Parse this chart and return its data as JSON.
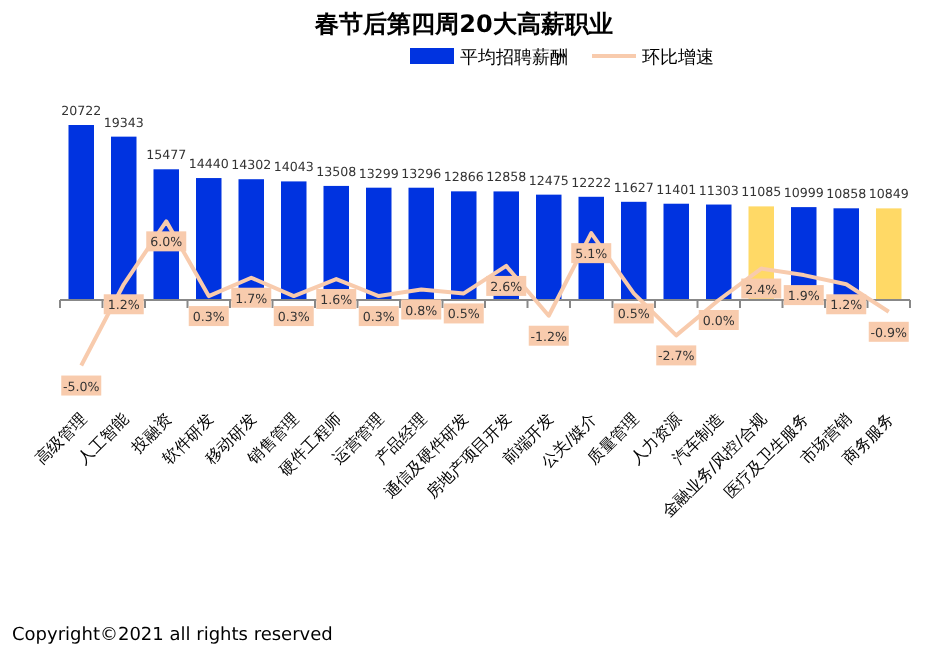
{
  "chart_data": {
    "type": "bar",
    "title": "春节后第四周20大高薪职业",
    "categories": [
      "高级管理",
      "人工智能",
      "投融资",
      "软件研发",
      "移动研发",
      "销售管理",
      "硬件工程师",
      "运营管理",
      "产品经理",
      "通信及硬件研发",
      "房地产项目开发",
      "前端开发",
      "公关/媒介",
      "质量管理",
      "人力资源",
      "汽车制造",
      "金融业务/风控/合规",
      "医疗及卫生服务",
      "市场营销",
      "商务服务"
    ],
    "series": [
      {
        "name": "平均招聘薪酬",
        "color": "#0033e0",
        "colors": [
          "#0033e0",
          "#0033e0",
          "#0033e0",
          "#0033e0",
          "#0033e0",
          "#0033e0",
          "#0033e0",
          "#0033e0",
          "#0033e0",
          "#0033e0",
          "#0033e0",
          "#0033e0",
          "#0033e0",
          "#0033e0",
          "#0033e0",
          "#0033e0",
          "#ffd966",
          "#0033e0",
          "#0033e0",
          "#ffd966"
        ],
        "values": [
          20722,
          19343,
          15477,
          14440,
          14302,
          14043,
          13508,
          13299,
          13296,
          12866,
          12858,
          12475,
          12222,
          11627,
          11401,
          11303,
          11085,
          10999,
          10858,
          10849
        ]
      },
      {
        "name": "环比增速",
        "type": "line",
        "axis": "y2",
        "color": "#f8cbad",
        "values": [
          -5.0,
          1.2,
          6.0,
          0.3,
          1.7,
          0.3,
          1.6,
          0.3,
          0.8,
          0.5,
          2.6,
          -1.2,
          5.1,
          0.5,
          -2.7,
          0.0,
          2.4,
          1.9,
          1.2,
          -0.9
        ],
        "value_labels": [
          "-5.0%",
          "1.2%",
          "6.0%",
          "0.3%",
          "1.7%",
          "0.3%",
          "1.6%",
          "0.3%",
          "0.8%",
          "0.5%",
          "2.6%",
          "-1.2%",
          "5.1%",
          "0.5%",
          "-2.7%",
          "0.0%",
          "2.4%",
          "1.9%",
          "1.2%",
          "-0.9%"
        ]
      }
    ],
    "data_labels": true,
    "legend": "top right",
    "annotations": [
      "Copyright©2021 all rights reserved"
    ]
  }
}
